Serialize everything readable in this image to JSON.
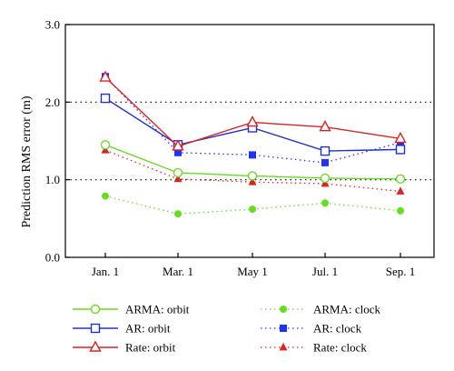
{
  "chart_data": {
    "type": "line",
    "title": "",
    "xlabel": "",
    "ylabel": "Prediction RMS error (m)",
    "categories": [
      "Jan. 1",
      "Mar. 1",
      "May 1",
      "Jul. 1",
      "Sep. 1"
    ],
    "ylim": [
      0.0,
      3.0
    ],
    "yticks": [
      "0.0",
      "1.0",
      "2.0",
      "3.0"
    ],
    "grid": "dotted horizontal lines at 1.0 and 2.0",
    "legend_position": "bottom",
    "series": [
      {
        "name": "ARMA: orbit",
        "values": [
          1.45,
          1.09,
          1.05,
          1.02,
          1.01
        ],
        "color": "#66dd22",
        "line": "solid",
        "marker": "open-circle"
      },
      {
        "name": "AR: orbit",
        "values": [
          2.05,
          1.45,
          1.67,
          1.37,
          1.39
        ],
        "color": "#2233cc",
        "line": "solid",
        "marker": "open-square"
      },
      {
        "name": "Rate: orbit",
        "values": [
          2.32,
          1.43,
          1.74,
          1.68,
          1.53
        ],
        "color": "#dd2222",
        "line": "solid",
        "marker": "open-triangle"
      },
      {
        "name": "ARMA: clock",
        "values": [
          0.79,
          0.56,
          0.62,
          0.7,
          0.6
        ],
        "color": "#66dd22",
        "line": "dotted",
        "marker": "filled-circle"
      },
      {
        "name": "AR: clock",
        "values": [
          2.33,
          1.35,
          1.32,
          1.22,
          1.48
        ],
        "color": "#2233ee",
        "line": "dotted",
        "marker": "filled-square"
      },
      {
        "name": "Rate: clock",
        "values": [
          1.38,
          1.01,
          0.97,
          0.95,
          0.85
        ],
        "color": "#dd2222",
        "line": "dotted",
        "marker": "filled-triangle"
      }
    ]
  }
}
